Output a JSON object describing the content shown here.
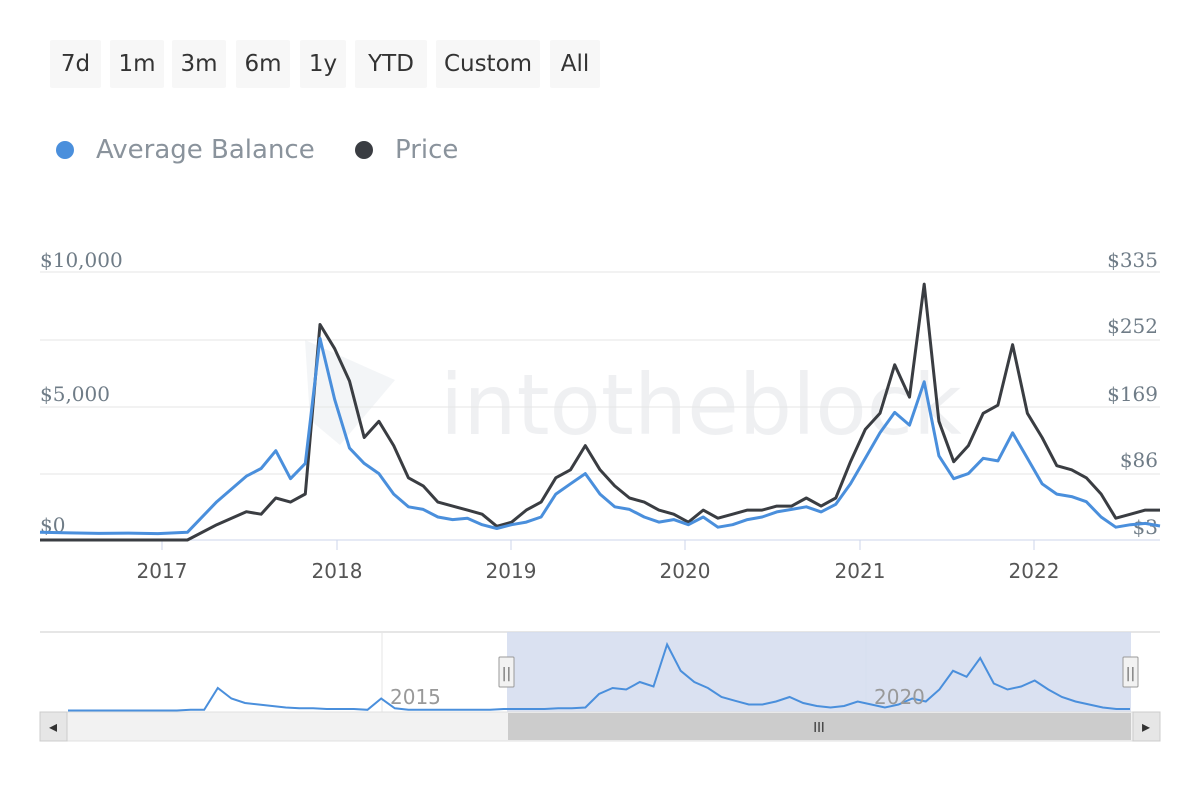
{
  "range_selector": {
    "buttons": [
      "7d",
      "1m",
      "3m",
      "6m",
      "1y",
      "YTD",
      "Custom",
      "All"
    ]
  },
  "watermark": "intotheblock",
  "colors": {
    "average_balance": "#4a8fdc",
    "price": "#3a3d42",
    "navigator_fill": "#d3dcef",
    "grid": "#e6e6e6"
  },
  "chart_data": {
    "type": "line",
    "legend": {
      "position": "top-left",
      "entries": [
        "Average Balance",
        "Price"
      ]
    },
    "grid": true,
    "x": [
      "2016-05",
      "2016-07",
      "2016-09",
      "2016-11",
      "2017-01",
      "2017-03",
      "2017-05",
      "2017-07",
      "2017-08",
      "2017-09",
      "2017-10",
      "2017-11",
      "2017-12",
      "2018-01",
      "2018-02",
      "2018-03",
      "2018-04",
      "2018-05",
      "2018-06",
      "2018-07",
      "2018-08",
      "2018-09",
      "2018-10",
      "2018-11",
      "2018-12",
      "2019-01",
      "2019-02",
      "2019-03",
      "2019-04",
      "2019-05",
      "2019-06",
      "2019-07",
      "2019-08",
      "2019-09",
      "2019-10",
      "2019-11",
      "2019-12",
      "2020-01",
      "2020-02",
      "2020-03",
      "2020-04",
      "2020-05",
      "2020-06",
      "2020-07",
      "2020-08",
      "2020-09",
      "2020-10",
      "2020-11",
      "2020-12",
      "2021-01",
      "2021-02",
      "2021-03",
      "2021-04",
      "2021-05",
      "2021-06",
      "2021-07",
      "2021-08",
      "2021-09",
      "2021-10",
      "2021-11",
      "2021-12",
      "2022-01",
      "2022-02",
      "2022-03",
      "2022-04",
      "2022-05",
      "2022-06",
      "2022-07",
      "2022-08",
      "2022-09"
    ],
    "y_axis_left": {
      "ticks": [
        "$0",
        "$5,000",
        "$10,000"
      ],
      "range": [
        0,
        10500
      ]
    },
    "y_axis_right": {
      "ticks": [
        "$3",
        "$86",
        "$169",
        "$252",
        "$335"
      ],
      "range": [
        3,
        335
      ]
    },
    "x_axis_labels": [
      "2017",
      "2018",
      "2019",
      "2020",
      "2021",
      "2022"
    ],
    "series": [
      {
        "name": "Average Balance",
        "axis": "left",
        "values": [
          300,
          280,
          260,
          270,
          250,
          300,
          1500,
          2500,
          2800,
          3500,
          2400,
          3000,
          7900,
          5500,
          3600,
          3000,
          2600,
          1800,
          1300,
          1200,
          900,
          800,
          850,
          600,
          450,
          600,
          700,
          900,
          1800,
          2200,
          2600,
          1800,
          1300,
          1200,
          900,
          700,
          800,
          600,
          900,
          500,
          600,
          800,
          900,
          1100,
          1200,
          1300,
          1100,
          1400,
          2200,
          3200,
          4200,
          5000,
          4500,
          6200,
          3300,
          2400,
          2600,
          3200,
          3100,
          4200,
          3200,
          2200,
          1800,
          1700,
          1500,
          900,
          500,
          600,
          650,
          550
        ]
      },
      {
        "name": "Price",
        "axis": "right",
        "values": [
          3,
          3,
          3,
          3,
          3,
          3,
          22,
          38,
          35,
          55,
          50,
          60,
          270,
          240,
          200,
          130,
          150,
          120,
          80,
          70,
          50,
          45,
          40,
          35,
          20,
          25,
          40,
          50,
          80,
          90,
          120,
          90,
          70,
          55,
          50,
          40,
          35,
          25,
          40,
          30,
          35,
          40,
          40,
          45,
          45,
          55,
          45,
          55,
          100,
          140,
          160,
          220,
          180,
          320,
          150,
          100,
          120,
          160,
          170,
          245,
          160,
          130,
          95,
          90,
          80,
          60,
          30,
          35,
          40,
          40
        ]
      }
    ]
  },
  "navigator": {
    "year_labels": [
      "2015",
      "2020"
    ],
    "handle_glyph": "||",
    "scroll_grip_glyph": "III",
    "left_arrow": "◂",
    "right_arrow": "▸",
    "series_values": [
      0.02,
      0.02,
      0.02,
      0.02,
      0.02,
      0.02,
      0.02,
      0.02,
      0.02,
      0.03,
      0.03,
      0.32,
      0.18,
      0.12,
      0.1,
      0.08,
      0.06,
      0.05,
      0.05,
      0.04,
      0.04,
      0.04,
      0.03,
      0.18,
      0.05,
      0.03,
      0.03,
      0.03,
      0.03,
      0.03,
      0.03,
      0.03,
      0.04,
      0.04,
      0.04,
      0.04,
      0.05,
      0.05,
      0.06,
      0.24,
      0.32,
      0.3,
      0.4,
      0.34,
      0.9,
      0.55,
      0.4,
      0.32,
      0.2,
      0.15,
      0.1,
      0.1,
      0.14,
      0.2,
      0.12,
      0.08,
      0.06,
      0.08,
      0.14,
      0.1,
      0.06,
      0.1,
      0.18,
      0.14,
      0.3,
      0.55,
      0.47,
      0.72,
      0.38,
      0.3,
      0.34,
      0.42,
      0.3,
      0.2,
      0.14,
      0.1,
      0.06,
      0.04,
      0.04
    ],
    "selected_range": [
      "2016-05",
      "2022-09"
    ]
  }
}
